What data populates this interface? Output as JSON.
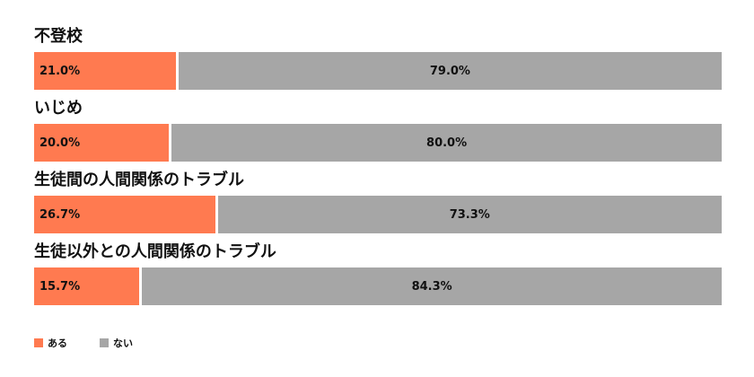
{
  "chart_data": {
    "type": "bar",
    "orientation": "horizontal",
    "stacked": true,
    "categories": [
      "不登校",
      "いじめ",
      "生徒間の人間関係のトラブル",
      "生徒以外との人間関係のトラブル"
    ],
    "series": [
      {
        "name": "ある",
        "values": [
          21.0,
          20.0,
          26.7,
          15.7
        ],
        "labels": [
          "21.0%",
          "20.0%",
          "26.7%",
          "15.7%"
        ],
        "color": "#ff7a50"
      },
      {
        "name": "ない",
        "values": [
          79.0,
          80.0,
          73.3,
          84.3
        ],
        "labels": [
          "79.0%",
          "80.0%",
          "73.3%",
          "84.3%"
        ],
        "color": "#a6a6a6"
      }
    ],
    "xlim": [
      0,
      100
    ],
    "grid": false,
    "legend_position": "bottom-left"
  }
}
